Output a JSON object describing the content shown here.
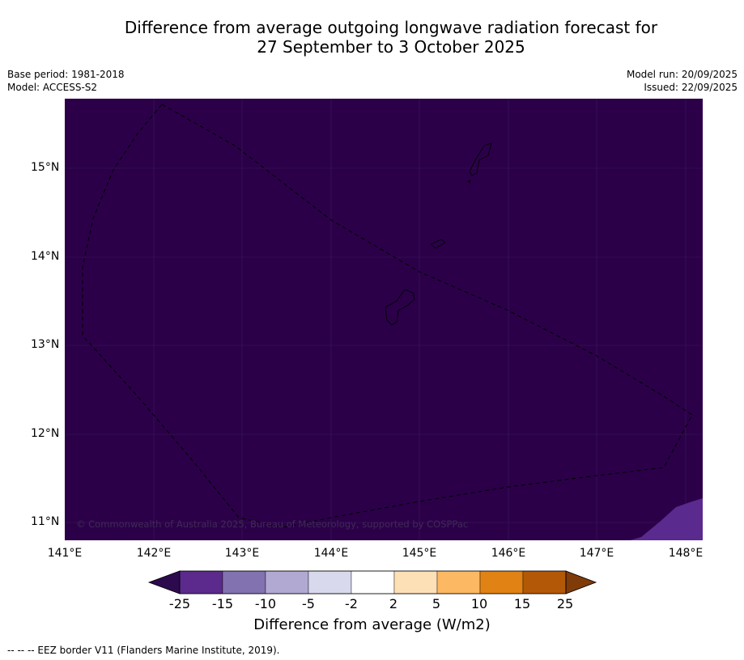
{
  "title": {
    "line1": "Difference from average outgoing longwave radiation forecast for",
    "line2": "27 September to 3 October 2025"
  },
  "meta": {
    "base_period": "Base period: 1981-2018",
    "model": "Model: ACCESS-S2",
    "model_run": "Model run: 20/09/2025",
    "issued": "Issued: 22/09/2025"
  },
  "map": {
    "y_ticks": [
      "15°N",
      "14°N",
      "13°N",
      "12°N",
      "11°N"
    ],
    "x_ticks": [
      "141°E",
      "142°E",
      "143°E",
      "144°E",
      "145°E",
      "146°E",
      "147°E",
      "148°E"
    ],
    "copyright": "© Commonwealth of Australia 2025, Bureau of Meteorology, supported by COSPPac",
    "background_color": "#2b0049",
    "anomaly_color": "#5a2a8e",
    "eez_label": "--  --  -- EEZ border V11 (Flanders Marine Institute, 2019)."
  },
  "colorbar": {
    "title": "Difference from average (W/m2)",
    "labels": [
      "-25",
      "-15",
      "-10",
      "-5",
      "-2",
      "2",
      "5",
      "10",
      "15",
      "25"
    ],
    "colors": [
      "#2d0a4e",
      "#5b2a8c",
      "#8272b0",
      "#b1a9d2",
      "#d8d9ec",
      "#ffffff",
      "#fee0b6",
      "#fdb863",
      "#e08214",
      "#b35806",
      "#7f3b08"
    ]
  }
}
